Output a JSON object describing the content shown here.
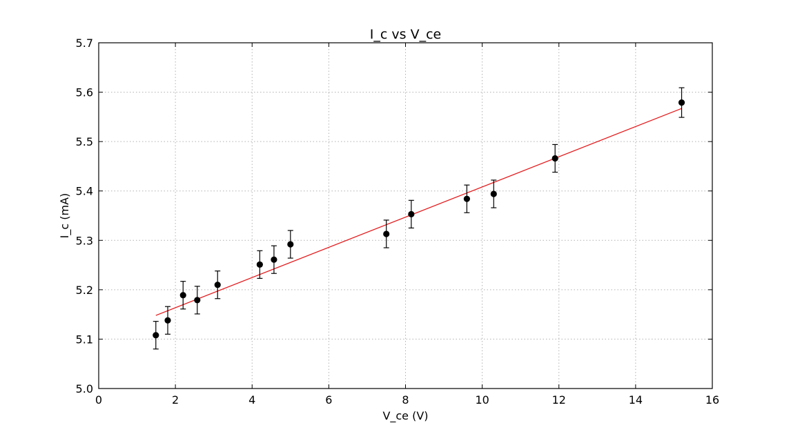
{
  "chart_data": {
    "type": "scatter",
    "title": "I_c vs V_ce",
    "xlabel": "V_ce (V)",
    "ylabel": "I_c (mA)",
    "xlim": [
      0,
      16
    ],
    "ylim": [
      5.0,
      5.7
    ],
    "xticks": [
      0,
      2,
      4,
      6,
      8,
      10,
      12,
      14,
      16
    ],
    "yticks": [
      5.0,
      5.1,
      5.2,
      5.3,
      5.4,
      5.5,
      5.6,
      5.7
    ],
    "xtick_labels": [
      "0",
      "2",
      "4",
      "6",
      "8",
      "10",
      "12",
      "14",
      "16"
    ],
    "ytick_labels": [
      "5.0",
      "5.1",
      "5.2",
      "5.3",
      "5.4",
      "5.5",
      "5.6",
      "5.7"
    ],
    "grid": true,
    "series": [
      {
        "kind": "errorbar",
        "color": "#000000",
        "x": [
          1.49,
          1.8,
          2.2,
          2.57,
          3.1,
          4.2,
          4.57,
          5.0,
          7.5,
          8.15,
          9.6,
          10.3,
          11.9,
          15.2
        ],
        "y": [
          5.108,
          5.138,
          5.189,
          5.179,
          5.21,
          5.251,
          5.261,
          5.292,
          5.313,
          5.353,
          5.384,
          5.394,
          5.466,
          5.579
        ],
        "yerr": [
          0.028,
          0.028,
          0.028,
          0.028,
          0.028,
          0.028,
          0.028,
          0.028,
          0.028,
          0.028,
          0.028,
          0.028,
          0.028,
          0.03
        ]
      },
      {
        "kind": "fit-line",
        "color": "#e31a1c",
        "x": [
          1.49,
          15.2
        ],
        "y": [
          5.148,
          5.567
        ]
      }
    ]
  }
}
